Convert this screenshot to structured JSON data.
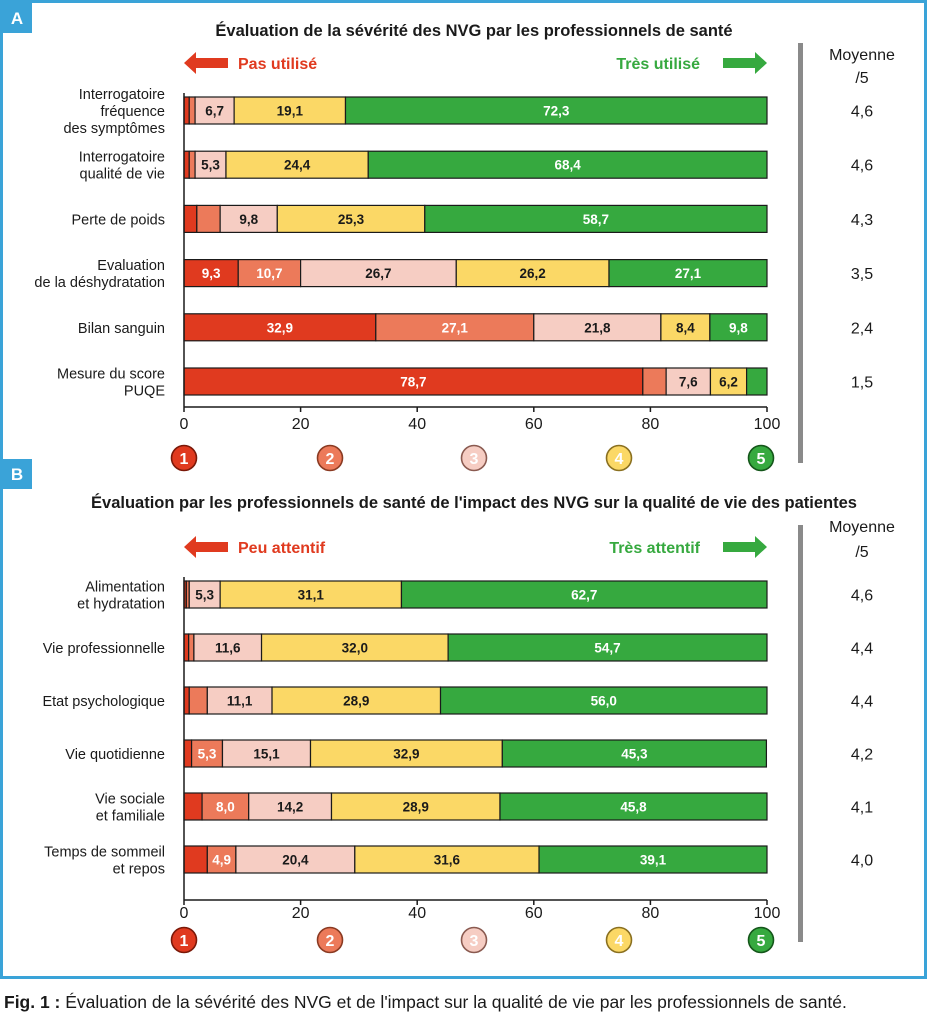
{
  "colors": {
    "frame": "#3aa3d8",
    "c1": "#e03a1f",
    "c2": "#ec7a5a",
    "c3": "#f6cdc3",
    "c4": "#fbd866",
    "c5": "#36a93f",
    "arrow_left": "#e03a1f",
    "arrow_right": "#36a93f",
    "separator": "#8a8a8a"
  },
  "scale": {
    "ticks": [
      "0",
      "20",
      "40",
      "60",
      "80",
      "100"
    ],
    "tick_values": [
      0,
      20,
      40,
      60,
      80,
      100
    ],
    "circle_labels": [
      "1",
      "2",
      "3",
      "4",
      "5"
    ]
  },
  "chart_data": [
    {
      "type": "bar",
      "stacked": true,
      "orientation": "horizontal",
      "panel_label": "A",
      "title": "Évaluation de la sévérité des NVG par les professionnels de santé",
      "left_label": "Pas utilisé",
      "right_label": "Très utilisé",
      "mean_header": [
        "Moyenne",
        "/5"
      ],
      "xlim": [
        0,
        100
      ],
      "categories": [
        [
          "Interrogatoire",
          "fréquence",
          "des symptômes"
        ],
        [
          "Interrogatoire",
          "qualité de vie"
        ],
        [
          "Perte de poids"
        ],
        [
          "Evaluation",
          "de la déshydratation"
        ],
        [
          "Bilan sanguin"
        ],
        [
          "Mesure du score",
          "PUQE"
        ]
      ],
      "series": [
        {
          "values": [
            0.9,
            0.9,
            2.2,
            9.3,
            32.9,
            78.7
          ],
          "labels": [
            "",
            "",
            "",
            "9,3",
            "32,9",
            "78,7"
          ]
        },
        {
          "values": [
            1.0,
            1.0,
            4.0,
            10.7,
            27.1,
            4.0
          ],
          "labels": [
            "",
            "",
            "",
            "10,7",
            "27,1",
            ""
          ]
        },
        {
          "values": [
            6.7,
            5.3,
            9.8,
            26.7,
            21.8,
            7.6
          ],
          "labels": [
            "6,7",
            "5,3",
            "9,8",
            "26,7",
            "21,8",
            "7,6"
          ]
        },
        {
          "values": [
            19.1,
            24.4,
            25.3,
            26.2,
            8.4,
            6.2
          ],
          "labels": [
            "19,1",
            "24,4",
            "25,3",
            "26,2",
            "8,4",
            "6,2"
          ]
        },
        {
          "values": [
            72.3,
            68.4,
            58.7,
            27.1,
            9.8,
            3.5
          ],
          "labels": [
            "72,3",
            "68,4",
            "58,7",
            "27,1",
            "9,8",
            ""
          ]
        }
      ],
      "means": [
        "4,6",
        "4,6",
        "4,3",
        "3,5",
        "2,4",
        "1,5"
      ]
    },
    {
      "type": "bar",
      "stacked": true,
      "orientation": "horizontal",
      "panel_label": "B",
      "title": "Évaluation par les professionnels de santé de l'impact des NVG sur la qualité de vie des patientes",
      "left_label": "Peu attentif",
      "right_label": "Très attentif",
      "mean_header": [
        "Moyenne",
        "/5"
      ],
      "xlim": [
        0,
        100
      ],
      "categories": [
        [
          "Alimentation",
          "et hydratation"
        ],
        [
          "Vie professionnelle"
        ],
        [
          "Etat psychologique"
        ],
        [
          "Vie quotidienne"
        ],
        [
          "Vie sociale",
          "et familiale"
        ],
        [
          "Temps de sommeil",
          "et repos"
        ]
      ],
      "series": [
        {
          "values": [
            0.4,
            0.8,
            0.9,
            1.3,
            3.1,
            4.0
          ],
          "labels": [
            "",
            "",
            "",
            "",
            "",
            ""
          ]
        },
        {
          "values": [
            0.5,
            0.9,
            3.1,
            5.3,
            8.0,
            4.9
          ],
          "labels": [
            "",
            "",
            "",
            "5,3",
            "8,0",
            "4,9"
          ]
        },
        {
          "values": [
            5.3,
            11.6,
            11.1,
            15.1,
            14.2,
            20.4
          ],
          "labels": [
            "5,3",
            "11,6",
            "11,1",
            "15,1",
            "14,2",
            "20,4"
          ]
        },
        {
          "values": [
            31.1,
            32.0,
            28.9,
            32.9,
            28.9,
            31.6
          ],
          "labels": [
            "31,1",
            "32,0",
            "28,9",
            "32,9",
            "28,9",
            "31,6"
          ]
        },
        {
          "values": [
            62.7,
            54.7,
            56.0,
            45.3,
            45.8,
            39.1
          ],
          "labels": [
            "62,7",
            "54,7",
            "56,0",
            "45,3",
            "45,8",
            "39,1"
          ]
        }
      ],
      "means": [
        "4,6",
        "4,4",
        "4,4",
        "4,2",
        "4,1",
        "4,0"
      ]
    }
  ],
  "caption": {
    "prefix": "Fig. 1 :",
    "text": " Évaluation de la sévérité des NVG et de l'impact sur la qualité de vie par les professionnels de santé."
  }
}
